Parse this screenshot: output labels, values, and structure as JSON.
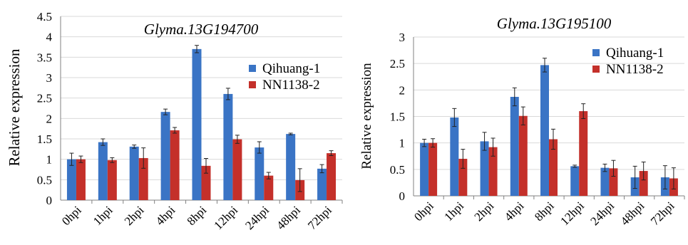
{
  "colors": {
    "Qihuang-1": "#3a74c5",
    "NN1138-2": "#c4302a"
  },
  "chart_data": [
    {
      "type": "bar",
      "title": "Glyma.13G194700",
      "xlabel": "",
      "ylabel": "Relative expression",
      "categories": [
        "0hpi",
        "1hpi",
        "2hpi",
        "4hpi",
        "8hpi",
        "12hpi",
        "24hpi",
        "48hpi",
        "72hpi"
      ],
      "ylim": [
        0,
        4.5
      ],
      "yticks": [
        "0",
        "0.5",
        "1",
        "1.5",
        "2",
        "2.5",
        "3",
        "3.5",
        "4",
        "4.5"
      ],
      "legend_position": "top-right",
      "series": [
        {
          "name": "Qihuang-1",
          "values": [
            1.0,
            1.42,
            1.31,
            2.16,
            3.7,
            2.6,
            1.29,
            1.62,
            0.77
          ],
          "errors": [
            0.15,
            0.08,
            0.04,
            0.07,
            0.09,
            0.14,
            0.14,
            0.02,
            0.1
          ]
        },
        {
          "name": "NN1138-2",
          "values": [
            1.0,
            0.98,
            1.03,
            1.71,
            0.84,
            1.49,
            0.6,
            0.49,
            1.15
          ],
          "errors": [
            0.08,
            0.06,
            0.25,
            0.07,
            0.18,
            0.1,
            0.08,
            0.28,
            0.06
          ]
        }
      ]
    },
    {
      "type": "bar",
      "title": "Glyma.13G195100",
      "xlabel": "",
      "ylabel": "Relative expression",
      "categories": [
        "0hpi",
        "1hpi",
        "2hpi",
        "4hpi",
        "8hpi",
        "12hpi",
        "24hpi",
        "48hpi",
        "72hpi"
      ],
      "ylim": [
        0,
        3
      ],
      "yticks": [
        "0",
        "0.5",
        "1",
        "1.5",
        "2",
        "2.5",
        "3"
      ],
      "legend_position": "top-right",
      "series": [
        {
          "name": "Qihuang-1",
          "values": [
            1.0,
            1.48,
            1.03,
            1.87,
            2.47,
            0.56,
            0.53,
            0.35,
            0.35
          ],
          "errors": [
            0.07,
            0.17,
            0.17,
            0.17,
            0.13,
            0.02,
            0.07,
            0.21,
            0.22
          ]
        },
        {
          "name": "NN1138-2",
          "values": [
            1.0,
            0.7,
            0.92,
            1.51,
            1.07,
            1.6,
            0.52,
            0.47,
            0.33
          ],
          "errors": [
            0.08,
            0.18,
            0.17,
            0.17,
            0.19,
            0.14,
            0.15,
            0.17,
            0.2
          ]
        }
      ]
    }
  ]
}
